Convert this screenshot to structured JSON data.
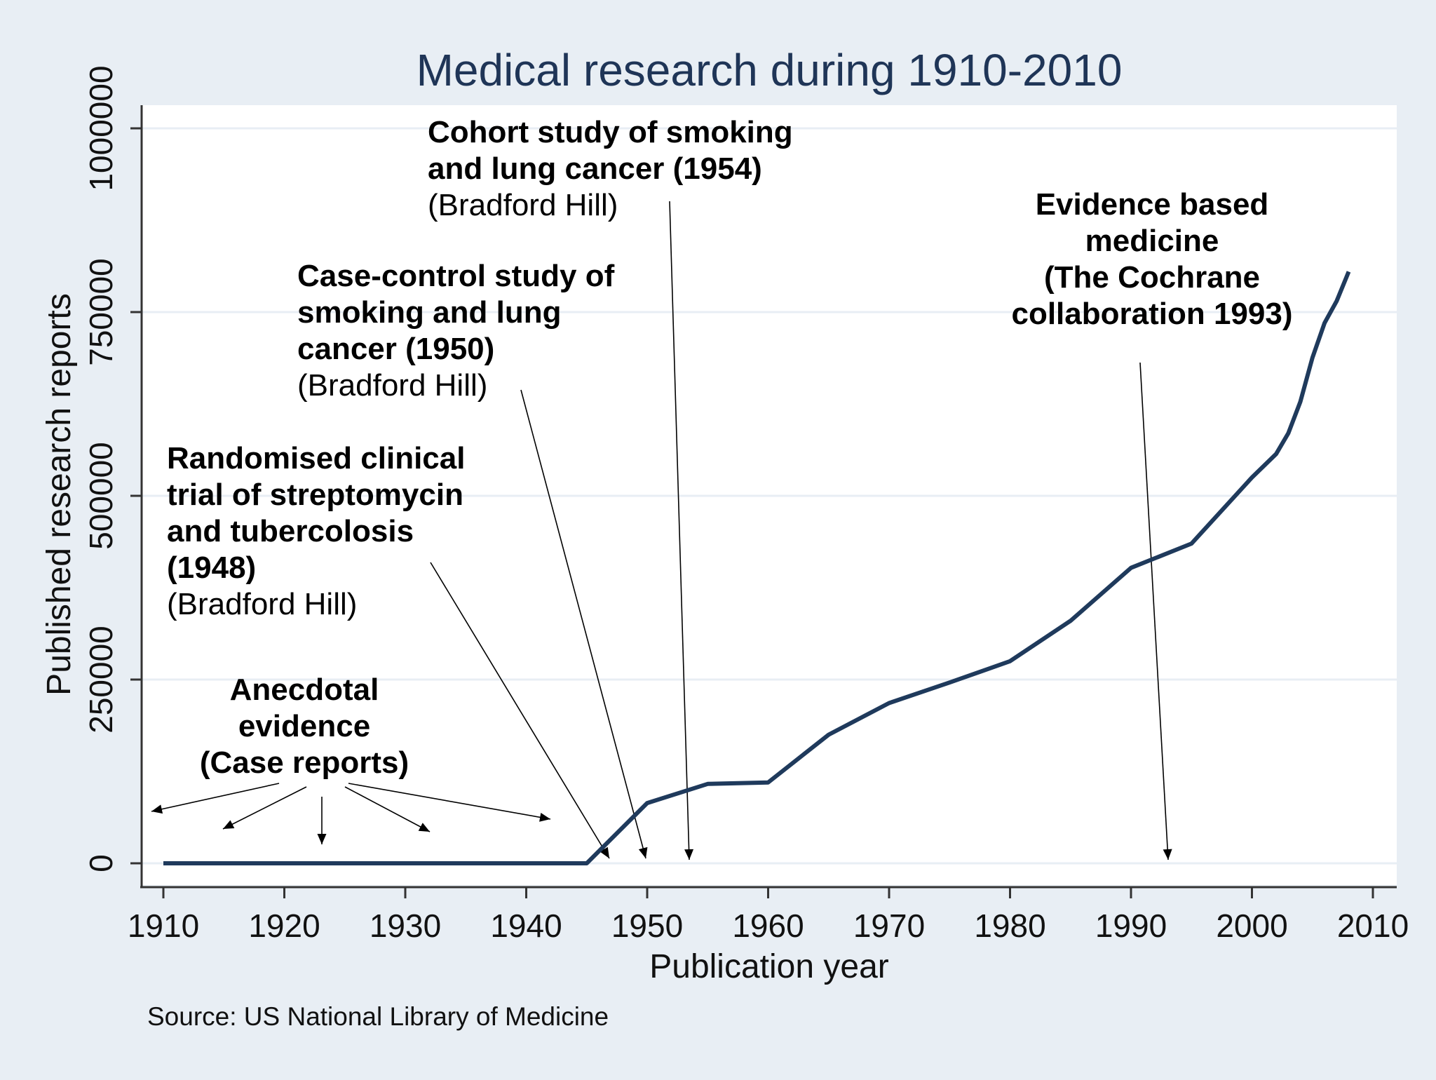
{
  "chart_data": {
    "type": "line",
    "title": "Medical research during 1910-2010",
    "xlabel": "Publication year",
    "ylabel": "Published research reports",
    "xlim": [
      1910,
      2010
    ],
    "ylim": [
      0,
      1000000
    ],
    "x_ticks": [
      "1910",
      "1920",
      "1930",
      "1940",
      "1950",
      "1960",
      "1970",
      "1980",
      "1990",
      "2000",
      "2010"
    ],
    "y_ticks": [
      "0",
      "250000",
      "500000",
      "750000",
      "1000000"
    ],
    "grid": true,
    "line_color": "#1f3a5c",
    "series": [
      {
        "x": [
          1910,
          1915,
          1920,
          1925,
          1930,
          1935,
          1940,
          1945,
          1950,
          1955,
          1960,
          1965,
          1970,
          1975,
          1980,
          1985,
          1990,
          1995,
          2000,
          2002,
          2003,
          2004,
          2005,
          2006,
          2007,
          2008
        ],
        "y": [
          0,
          0,
          0,
          0,
          0,
          0,
          0,
          0,
          82000,
          108000,
          110000,
          175000,
          218000,
          246000,
          275000,
          330000,
          402000,
          435000,
          525000,
          557000,
          585000,
          628000,
          688000,
          735000,
          765000,
          805000
        ]
      }
    ],
    "annotations": [
      {
        "name": "anecdotal",
        "lines": [
          "Anecdotal",
          "evidence",
          "(Case reports)"
        ],
        "bold_lines": 3
      },
      {
        "name": "rct",
        "lines": [
          "Randomised clinical",
          "trial of streptomycin",
          "and tubercolosis",
          "(1948)",
          "(Bradford Hill)"
        ],
        "bold_lines": 4
      },
      {
        "name": "case-control",
        "lines": [
          "Case-control study of",
          "smoking and lung",
          "cancer (1950)",
          "(Bradford Hill)"
        ],
        "bold_lines": 3
      },
      {
        "name": "cohort",
        "lines": [
          "Cohort study of smoking",
          "and lung cancer (1954)",
          "(Bradford Hill)"
        ],
        "bold_lines": 2
      },
      {
        "name": "ebm",
        "lines": [
          "Evidence based",
          "medicine",
          "(The Cochrane",
          "collaboration 1993)"
        ],
        "bold_lines": 4
      }
    ],
    "source": "Source: US National Library of Medicine"
  }
}
